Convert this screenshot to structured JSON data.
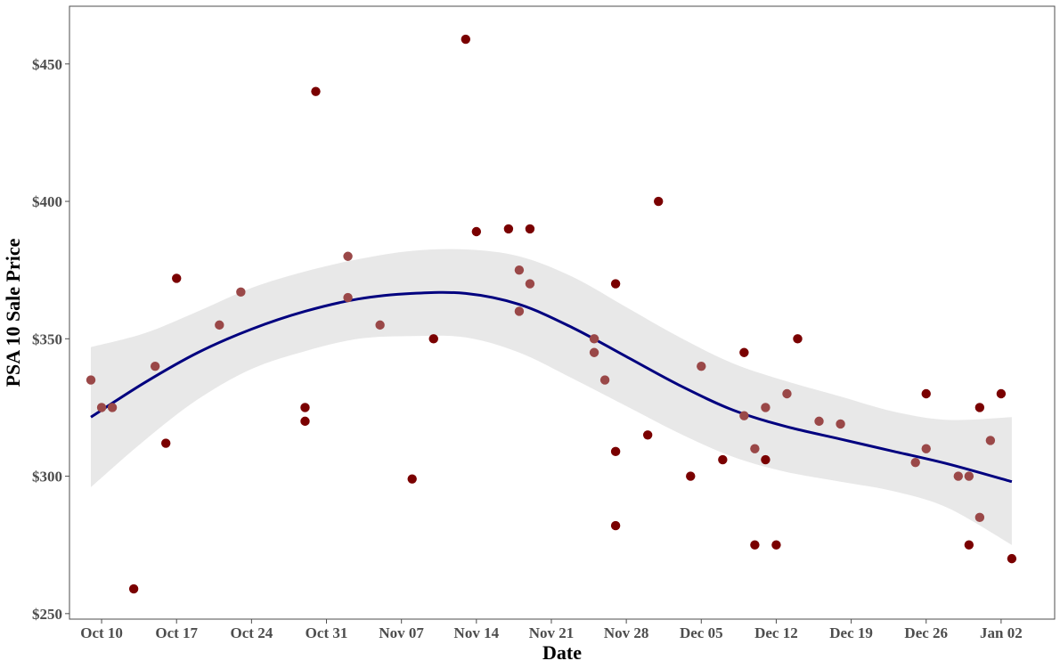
{
  "chart_data": {
    "type": "scatter",
    "xlabel": "Date",
    "ylabel": "PSA 10 Sale Price",
    "x_ticks": [
      "Oct 10",
      "Oct 17",
      "Oct 24",
      "Oct 31",
      "Nov 07",
      "Nov 14",
      "Nov 21",
      "Nov 28",
      "Dec 05",
      "Dec 12",
      "Dec 19",
      "Dec 26",
      "Jan 02"
    ],
    "y_ticks": [
      "$250",
      "$300",
      "$350",
      "$400",
      "$450"
    ],
    "xlim": [
      "2021-10-07",
      "2022-01-07"
    ],
    "ylim": [
      248,
      471
    ],
    "grid": false,
    "colors": {
      "point_dark": "#7a0000",
      "point_light": "#9a4848",
      "trend_line": "#00007f",
      "confidence_band": "#e8e8e8",
      "panel_border": "#4d4d4d"
    },
    "points": [
      {
        "x": "2021-10-09",
        "y": 335,
        "tone": "light"
      },
      {
        "x": "2021-10-10",
        "y": 325,
        "tone": "light"
      },
      {
        "x": "2021-10-11",
        "y": 325,
        "tone": "light"
      },
      {
        "x": "2021-10-13",
        "y": 259,
        "tone": "dark"
      },
      {
        "x": "2021-10-15",
        "y": 340,
        "tone": "light"
      },
      {
        "x": "2021-10-16",
        "y": 312,
        "tone": "dark"
      },
      {
        "x": "2021-10-17",
        "y": 372,
        "tone": "dark"
      },
      {
        "x": "2021-10-21",
        "y": 355,
        "tone": "light"
      },
      {
        "x": "2021-10-23",
        "y": 367,
        "tone": "light"
      },
      {
        "x": "2021-10-29",
        "y": 325,
        "tone": "dark"
      },
      {
        "x": "2021-10-29",
        "y": 320,
        "tone": "dark"
      },
      {
        "x": "2021-10-30",
        "y": 440,
        "tone": "dark"
      },
      {
        "x": "2021-11-02",
        "y": 380,
        "tone": "light"
      },
      {
        "x": "2021-11-02",
        "y": 365,
        "tone": "light"
      },
      {
        "x": "2021-11-05",
        "y": 355,
        "tone": "light"
      },
      {
        "x": "2021-11-08",
        "y": 299,
        "tone": "dark"
      },
      {
        "x": "2021-11-10",
        "y": 350,
        "tone": "dark"
      },
      {
        "x": "2021-11-13",
        "y": 459,
        "tone": "dark"
      },
      {
        "x": "2021-11-14",
        "y": 389,
        "tone": "dark"
      },
      {
        "x": "2021-11-17",
        "y": 390,
        "tone": "dark"
      },
      {
        "x": "2021-11-18",
        "y": 375,
        "tone": "light"
      },
      {
        "x": "2021-11-18",
        "y": 360,
        "tone": "light"
      },
      {
        "x": "2021-11-19",
        "y": 390,
        "tone": "dark"
      },
      {
        "x": "2021-11-19",
        "y": 370,
        "tone": "light"
      },
      {
        "x": "2021-11-25",
        "y": 350,
        "tone": "light"
      },
      {
        "x": "2021-11-25",
        "y": 345,
        "tone": "light"
      },
      {
        "x": "2021-11-26",
        "y": 335,
        "tone": "light"
      },
      {
        "x": "2021-11-27",
        "y": 370,
        "tone": "dark"
      },
      {
        "x": "2021-11-27",
        "y": 309,
        "tone": "dark"
      },
      {
        "x": "2021-11-27",
        "y": 282,
        "tone": "dark"
      },
      {
        "x": "2021-11-30",
        "y": 315,
        "tone": "dark"
      },
      {
        "x": "2021-12-01",
        "y": 400,
        "tone": "dark"
      },
      {
        "x": "2021-12-04",
        "y": 300,
        "tone": "dark"
      },
      {
        "x": "2021-12-05",
        "y": 340,
        "tone": "light"
      },
      {
        "x": "2021-12-07",
        "y": 306,
        "tone": "dark"
      },
      {
        "x": "2021-12-09",
        "y": 345,
        "tone": "dark"
      },
      {
        "x": "2021-12-09",
        "y": 322,
        "tone": "light"
      },
      {
        "x": "2021-12-10",
        "y": 310,
        "tone": "light"
      },
      {
        "x": "2021-12-10",
        "y": 275,
        "tone": "dark"
      },
      {
        "x": "2021-12-11",
        "y": 325,
        "tone": "light"
      },
      {
        "x": "2021-12-11",
        "y": 306,
        "tone": "dark"
      },
      {
        "x": "2021-12-12",
        "y": 275,
        "tone": "dark"
      },
      {
        "x": "2021-12-13",
        "y": 330,
        "tone": "light"
      },
      {
        "x": "2021-12-14",
        "y": 350,
        "tone": "dark"
      },
      {
        "x": "2021-12-16",
        "y": 320,
        "tone": "light"
      },
      {
        "x": "2021-12-18",
        "y": 319,
        "tone": "light"
      },
      {
        "x": "2021-12-25",
        "y": 305,
        "tone": "light"
      },
      {
        "x": "2021-12-26",
        "y": 330,
        "tone": "dark"
      },
      {
        "x": "2021-12-26",
        "y": 310,
        "tone": "light"
      },
      {
        "x": "2021-12-29",
        "y": 300,
        "tone": "light"
      },
      {
        "x": "2021-12-30",
        "y": 300,
        "tone": "light"
      },
      {
        "x": "2021-12-30",
        "y": 275,
        "tone": "dark"
      },
      {
        "x": "2021-12-31",
        "y": 325,
        "tone": "dark"
      },
      {
        "x": "2021-12-31",
        "y": 285,
        "tone": "light"
      },
      {
        "x": "2022-01-01",
        "y": 313,
        "tone": "light"
      },
      {
        "x": "2022-01-02",
        "y": 330,
        "tone": "dark"
      },
      {
        "x": "2022-01-03",
        "y": 270,
        "tone": "dark"
      }
    ],
    "trend": {
      "x": [
        "2021-10-09",
        "2021-10-14",
        "2021-10-19",
        "2021-10-24",
        "2021-10-29",
        "2021-11-03",
        "2021-11-08",
        "2021-11-13",
        "2021-11-18",
        "2021-11-23",
        "2021-11-28",
        "2021-12-03",
        "2021-12-08",
        "2021-12-13",
        "2021-12-18",
        "2021-12-23",
        "2021-12-28",
        "2022-01-03"
      ],
      "fit": [
        321.5,
        334,
        345,
        353.5,
        360,
        364.5,
        366.5,
        366.5,
        362.5,
        354,
        343.5,
        333,
        324,
        318,
        313.5,
        309,
        304.5,
        298
      ],
      "lower": [
        296,
        313,
        328,
        339,
        345.5,
        350,
        351,
        350.5,
        345,
        335.5,
        325.5,
        315.5,
        307,
        301.5,
        298,
        294.5,
        288.5,
        275
      ],
      "upper": [
        347,
        352,
        360,
        368.5,
        374.5,
        379,
        382,
        382.5,
        380,
        372.5,
        361.5,
        350.5,
        341,
        334.5,
        329,
        323.5,
        320.5,
        321.5
      ]
    }
  }
}
